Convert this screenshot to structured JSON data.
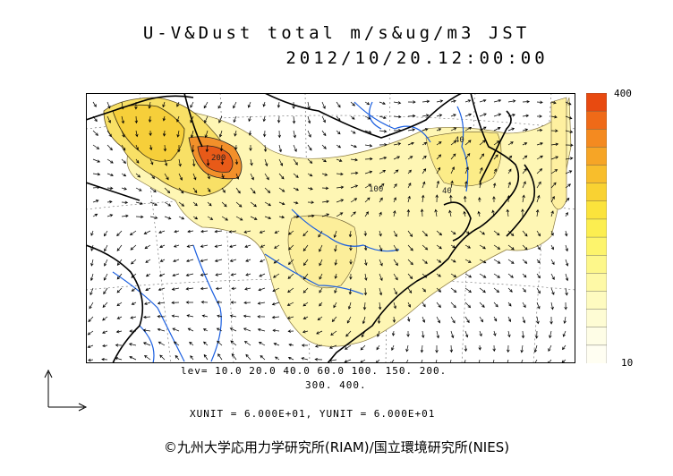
{
  "title_line1": "U-V&Dust total m/s&ug/m3 JST",
  "title_line2": "2012/10/20.12:00:00",
  "legend": {
    "max_label": "400",
    "min_label": "10",
    "colors": [
      "#e84a10",
      "#ef6a18",
      "#f48a20",
      "#f6a526",
      "#f8be2c",
      "#f9d232",
      "#fbe33c",
      "#fcee50",
      "#fdf46c",
      "#fdf78a",
      "#fef9a6",
      "#fefbc0",
      "#fefcd4",
      "#fefde6",
      "#fffef2"
    ]
  },
  "levels_line1": "lev= 10.0 20.0 40.0 60.0 100. 150. 200.",
  "levels_line2": "300. 400.",
  "units": "XUNIT = 6.000E+01, YUNIT = 6.000E+01",
  "credit": "©九州大学応用力学研究所(RIAM)/国立環境研究所(NIES)",
  "contour_labels": [
    "40",
    "40",
    "100",
    "200"
  ],
  "colors": {
    "coast": "#000000",
    "river": "#1b5fe0",
    "dust_light": "#fef6b4",
    "dust_mid": "#f7de5a",
    "dust_high": "#e85a18"
  }
}
